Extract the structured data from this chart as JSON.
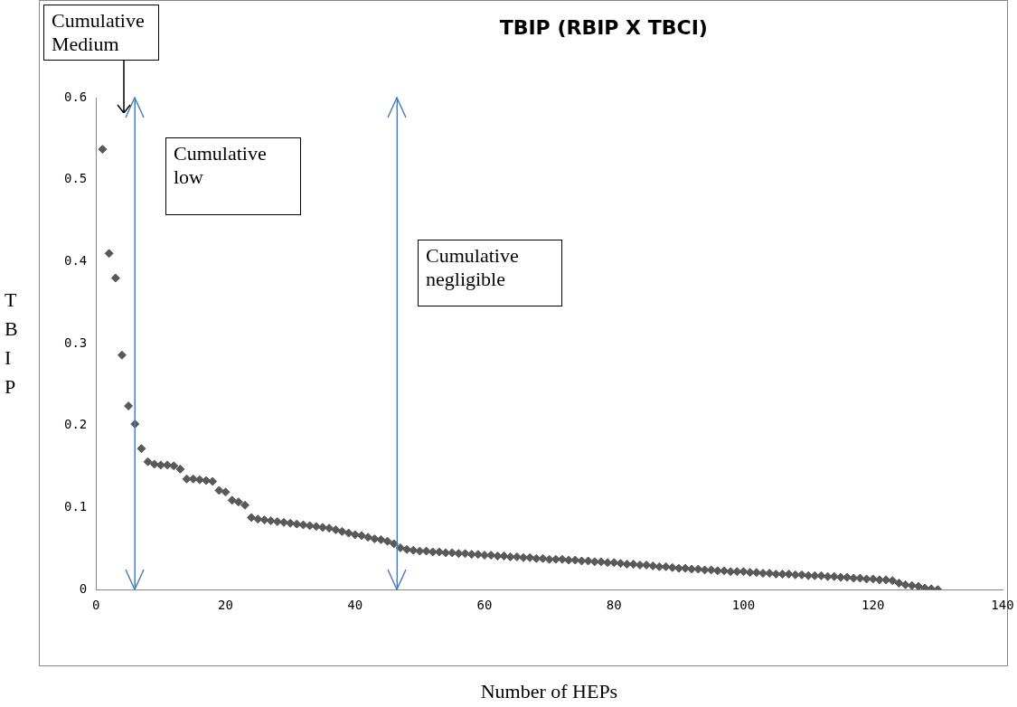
{
  "chart_data": {
    "type": "scatter",
    "title": "TBIP (RBIP X TBCI)",
    "xlabel": "Number of HEPs",
    "ylabel": "TBIP",
    "x": [
      1,
      2,
      3,
      4,
      5,
      6,
      7,
      8,
      9,
      10,
      11,
      12,
      13,
      14,
      15,
      16,
      17,
      18,
      19,
      20,
      21,
      22,
      23,
      24,
      25,
      26,
      27,
      28,
      29,
      30,
      31,
      32,
      33,
      34,
      35,
      36,
      37,
      38,
      39,
      40,
      41,
      42,
      43,
      44,
      45,
      46,
      47,
      48,
      49,
      50,
      51,
      52,
      53,
      54,
      55,
      56,
      57,
      58,
      59,
      60,
      61,
      62,
      63,
      64,
      65,
      66,
      67,
      68,
      69,
      70,
      71,
      72,
      73,
      74,
      75,
      76,
      77,
      78,
      79,
      80,
      81,
      82,
      83,
      84,
      85,
      86,
      87,
      88,
      89,
      90,
      91,
      92,
      93,
      94,
      95,
      96,
      97,
      98,
      99,
      100,
      101,
      102,
      103,
      104,
      105,
      106,
      107,
      108,
      109,
      110,
      111,
      112,
      113,
      114,
      115,
      116,
      117,
      118,
      119,
      120,
      121,
      122,
      123,
      124,
      125,
      126,
      127,
      128,
      129,
      130
    ],
    "series": [
      {
        "color": "#595959",
        "values": [
          0.537,
          0.41,
          0.38,
          0.286,
          0.224,
          0.202,
          0.172,
          0.156,
          0.153,
          0.152,
          0.152,
          0.151,
          0.147,
          0.135,
          0.135,
          0.134,
          0.133,
          0.132,
          0.121,
          0.119,
          0.109,
          0.107,
          0.103,
          0.088,
          0.086,
          0.085,
          0.084,
          0.083,
          0.082,
          0.081,
          0.08,
          0.079,
          0.078,
          0.077,
          0.076,
          0.075,
          0.073,
          0.071,
          0.069,
          0.067,
          0.066,
          0.064,
          0.062,
          0.061,
          0.059,
          0.056,
          0.051,
          0.049,
          0.048,
          0.047,
          0.047,
          0.046,
          0.046,
          0.045,
          0.045,
          0.044,
          0.044,
          0.043,
          0.043,
          0.042,
          0.042,
          0.041,
          0.041,
          0.04,
          0.04,
          0.039,
          0.039,
          0.038,
          0.038,
          0.037,
          0.037,
          0.037,
          0.036,
          0.036,
          0.035,
          0.035,
          0.034,
          0.034,
          0.033,
          0.033,
          0.032,
          0.031,
          0.031,
          0.03,
          0.03,
          0.029,
          0.028,
          0.028,
          0.027,
          0.026,
          0.026,
          0.025,
          0.025,
          0.024,
          0.024,
          0.023,
          0.023,
          0.022,
          0.022,
          0.022,
          0.021,
          0.021,
          0.02,
          0.02,
          0.019,
          0.019,
          0.019,
          0.018,
          0.018,
          0.017,
          0.017,
          0.017,
          0.016,
          0.016,
          0.015,
          0.015,
          0.014,
          0.014,
          0.013,
          0.013,
          0.012,
          0.012,
          0.011,
          0.008,
          0.006,
          0.005,
          0.004,
          0.002,
          0.001,
          0
        ]
      }
    ],
    "xlim": [
      0,
      140
    ],
    "xticks": [
      0,
      20,
      40,
      60,
      80,
      100,
      120,
      140
    ],
    "ylim": [
      0,
      0.6
    ],
    "yticks": [
      0,
      0.1,
      0.2,
      0.3,
      0.4,
      0.5,
      0.6
    ],
    "grid": false,
    "legend": false,
    "marker": "diamond",
    "ref_lines": [
      {
        "axis": "x",
        "value": 6,
        "color": "#4a7ebb"
      },
      {
        "axis": "x",
        "value": 46.5,
        "color": "#4a7ebb"
      }
    ],
    "annotations": [
      "Cumulative Medium",
      "Cumulative low",
      "Cumulative negligible"
    ]
  }
}
